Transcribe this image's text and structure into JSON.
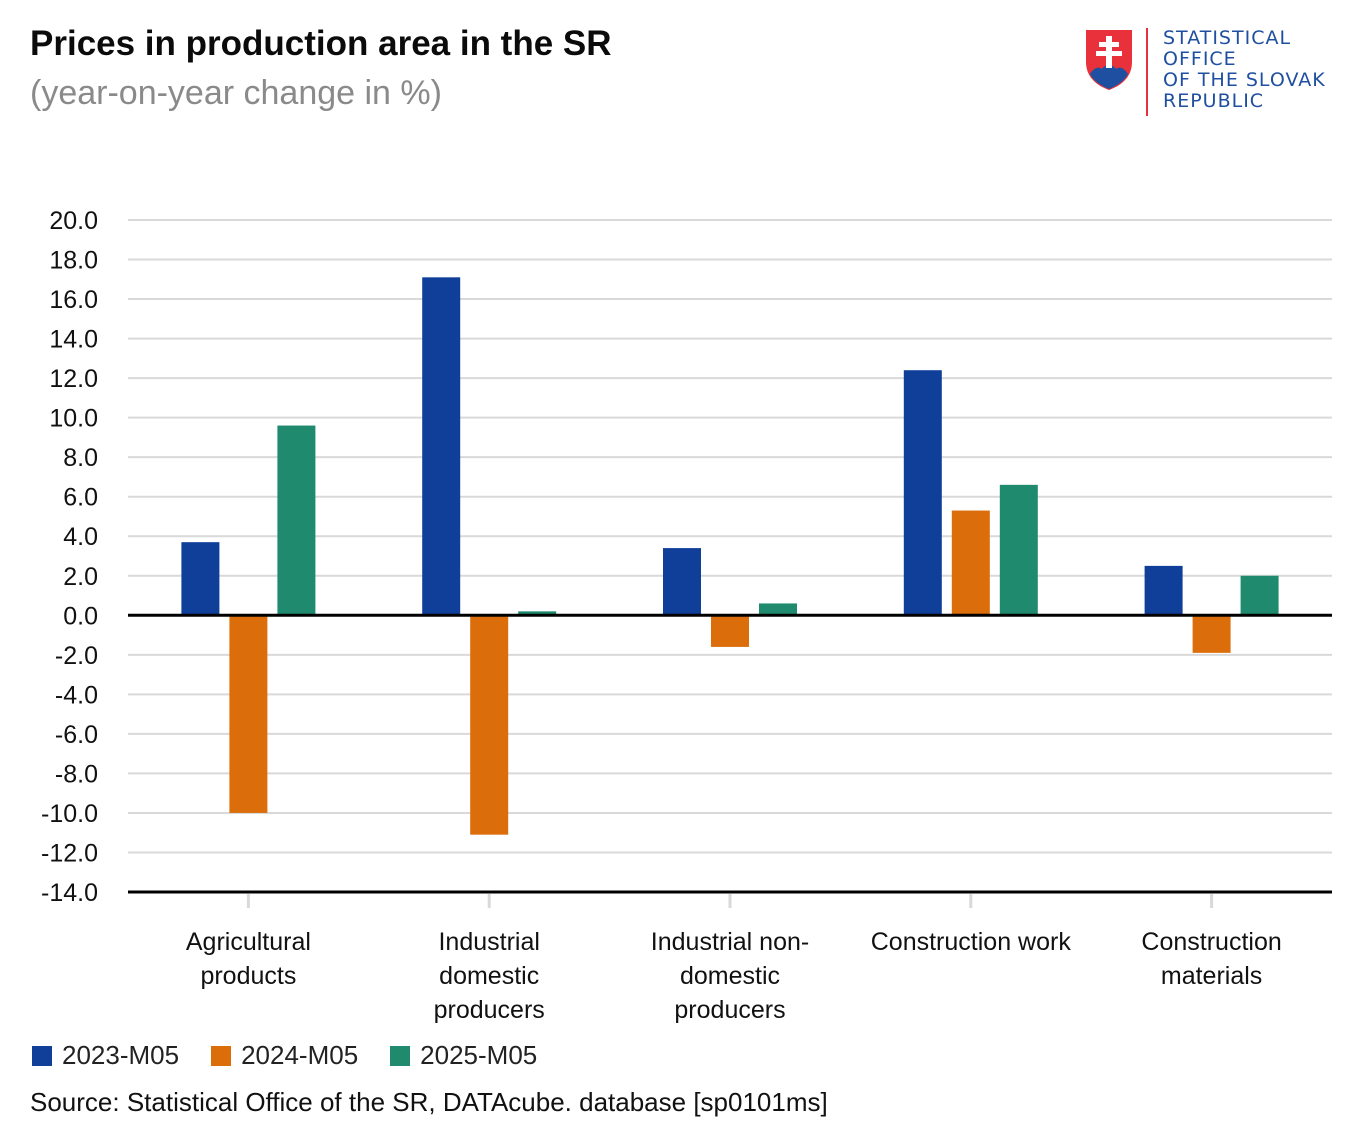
{
  "header": {
    "title": "Prices in production area in the SR",
    "subtitle": "(year-on-year change in %)"
  },
  "logo": {
    "name": "slovak-coat-of-arms",
    "lines": [
      "STATISTICAL",
      "OFFICE",
      "OF THE SLOVAK",
      "REPUBLIC"
    ],
    "colors": {
      "shield": "#e8313a",
      "base": "#1f4fa0",
      "text": "#1f4fa0"
    }
  },
  "chart_data": {
    "type": "bar",
    "title": "Prices in production area in the SR",
    "subtitle": "(year-on-year change in %)",
    "categories": [
      [
        "Agricultural",
        "products"
      ],
      [
        "Industrial",
        "domestic",
        "producers"
      ],
      [
        "Industrial non-",
        "domestic",
        "producers"
      ],
      [
        "Construction work"
      ],
      [
        "Construction",
        "materials"
      ]
    ],
    "series": [
      {
        "name": "2023-M05",
        "color": "#0f3f99",
        "values": [
          3.7,
          17.1,
          3.4,
          12.4,
          2.5
        ]
      },
      {
        "name": "2024-M05",
        "color": "#db6e0a",
        "values": [
          -10.0,
          -11.1,
          -1.6,
          5.3,
          -1.9
        ]
      },
      {
        "name": "2025-M05",
        "color": "#1f8a6e",
        "values": [
          9.6,
          0.2,
          0.6,
          6.6,
          2.0
        ]
      }
    ],
    "ylim": [
      -14,
      20
    ],
    "yticks": [
      "20.0",
      "18.0",
      "16.0",
      "14.0",
      "12.0",
      "10.0",
      "8.0",
      "6.0",
      "4.0",
      "2.0",
      "0.0",
      "-2.0",
      "-4.0",
      "-6.0",
      "-8.0",
      "-10.0",
      "-12.0",
      "-14.0"
    ],
    "grid": true,
    "legend_position": "bottom-left"
  },
  "source": "Source: Statistical Office of the SR, DATAcube. database [sp0101ms]"
}
